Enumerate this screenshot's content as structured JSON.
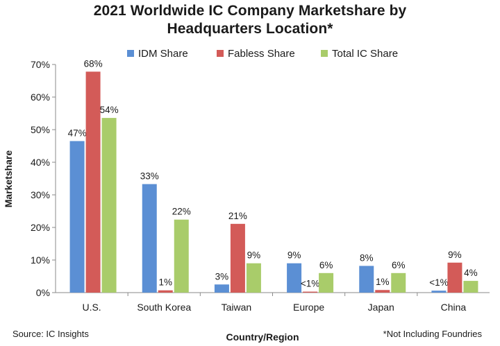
{
  "chart_data": {
    "type": "bar",
    "title": [
      "2021 Worldwide IC Company Marketshare by",
      "Headquarters Location*"
    ],
    "xlabel": "Country/Region",
    "ylabel": "Marketshare",
    "ylim": [
      0,
      70
    ],
    "yticks": [
      0,
      10,
      20,
      30,
      40,
      50,
      60,
      70
    ],
    "ytick_labels": [
      "0%",
      "10%",
      "20%",
      "30%",
      "40%",
      "50%",
      "60%",
      "70%"
    ],
    "categories": [
      "U.S.",
      "South Korea",
      "Taiwan",
      "Europe",
      "Japan",
      "China"
    ],
    "series": [
      {
        "name": "IDM Share",
        "color": "#5b8fd4",
        "values": [
          46.5,
          33.3,
          2.5,
          9.0,
          8.2,
          0.6
        ],
        "labels": [
          "47%",
          "33%",
          "3%",
          "9%",
          "8%",
          "<1%"
        ]
      },
      {
        "name": "Fabless Share",
        "color": "#d35b58",
        "values": [
          67.8,
          0.7,
          21.1,
          0.3,
          0.8,
          9.2
        ],
        "labels": [
          "68%",
          "1%",
          "21%",
          "<1%",
          "1%",
          "9%"
        ]
      },
      {
        "name": "Total IC Share",
        "color": "#a9cc6a",
        "values": [
          53.6,
          22.4,
          9.0,
          6.0,
          6.0,
          3.6
        ],
        "labels": [
          "54%",
          "22%",
          "9%",
          "6%",
          "6%",
          "4%"
        ]
      }
    ],
    "grid": false,
    "legend_position": "top-center"
  },
  "notes": {
    "source": "Source: IC Insights",
    "footnote": "*Not Including Foundries"
  }
}
